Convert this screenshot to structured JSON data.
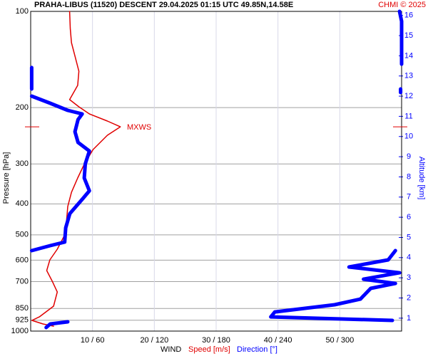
{
  "chart_data": {
    "type": "profile",
    "title": "PRAHA-LIBUS (11520)   DESCENT   29.04.2025 01:15 UTC  49.85N,14.58E",
    "credit": "CHMI © 2025",
    "ylabel": "Pressure [hPa]",
    "y2label": "Altitude [km]",
    "xlabel": "WIND",
    "log_y": true,
    "ylim": [
      1000,
      100
    ],
    "yticks": [
      100,
      200,
      300,
      400,
      500,
      600,
      700,
      850,
      925,
      1000
    ],
    "xlim": [
      0,
      60
    ],
    "x2lim": [
      0,
      360
    ],
    "xticks": [
      {
        "value": 10,
        "label": "10 / 60"
      },
      {
        "value": 20,
        "label": "20 / 120"
      },
      {
        "value": 30,
        "label": "30 / 180"
      },
      {
        "value": 40,
        "label": "40 / 240"
      },
      {
        "value": 50,
        "label": "50 / 300"
      }
    ],
    "y2lim": [
      0.36,
      16.2
    ],
    "y2ticks": [
      1,
      2,
      3,
      4,
      5,
      6,
      7,
      8,
      9,
      10,
      11,
      12,
      13,
      14,
      15,
      16
    ],
    "grid": true,
    "annotations": [
      {
        "text": "MXWS",
        "pressure": 229.6
      }
    ],
    "series": [
      {
        "name": "Speed [m/s]",
        "color": "#e00000",
        "pressure": [
          100,
          113.1,
          125.3,
          138.8,
          153.9,
          170.4,
          188.8,
          198.8,
          209.3,
          220.3,
          229.6,
          244.1,
          270.4,
          299.7,
          332,
          368,
          407.4,
          451.7,
          500.5,
          554.5,
          598.8,
          646.8,
          698.6,
          754.5,
          835.7,
          902.8,
          926,
          950,
          965
        ],
        "values": [
          6.3,
          6.4,
          6.6,
          7.2,
          7.8,
          7.6,
          6.3,
          7.8,
          9.5,
          12.4,
          14.5,
          12.4,
          10.1,
          8.7,
          7.6,
          6.6,
          6.0,
          5.8,
          5.5,
          4.3,
          3.1,
          2.6,
          3.5,
          4.3,
          3.7,
          1.4,
          0.2,
          2.0,
          3.7
        ]
      },
      {
        "name": "Direction [°]",
        "color": "#0000ff",
        "axis": "x2",
        "pressure": [
          100,
          107.4,
          119.0,
          131.9,
          146.2,
          null,
          149.9,
          162,
          174.9,
          null,
          174.9,
          179.4,
          null,
          184.1,
          193.8,
          204,
          209.3,
          218,
          237.9,
          256.9,
          273.3,
          299.7,
          332,
          364.1,
          387.3,
          429,
          475.3,
          526.8,
          540.4,
          560.3,
          null,
          560.3,
          598.8,
          630.4,
          656.9,
          688,
          709.4,
          735.3,
          794.4,
          827.3,
          871,
          902.8,
          926,
          null,
          935.5,
          950,
          974.8
        ],
        "values": [
          358,
          360,
          360,
          360,
          360,
          null,
          1,
          1,
          1,
          null,
          359,
          359,
          null,
          1,
          19,
          36,
          50,
          46,
          43,
          46,
          57,
          53,
          52,
          57,
          50,
          38,
          34,
          33,
          19,
          1,
          null,
          354,
          347,
          309,
          358,
          323,
          354,
          330,
          320,
          295,
          237,
          233,
          351,
          null,
          36,
          19,
          15
        ]
      }
    ]
  }
}
